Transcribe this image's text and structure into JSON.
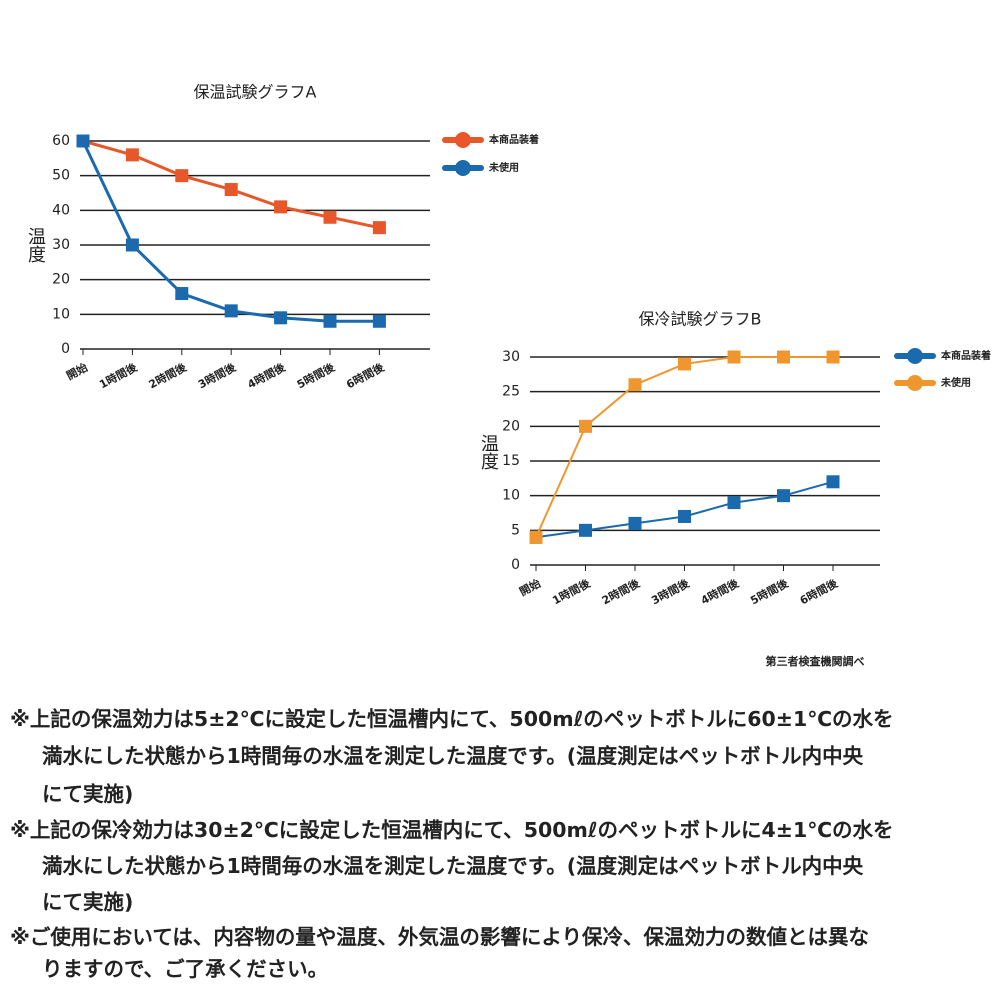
{
  "chart_data": [
    {
      "type": "line",
      "title": "保温試験グラフA",
      "y_label": "温度",
      "categories": [
        "開始",
        "1時間後",
        "2時間後",
        "3時間後",
        "4時間後",
        "5時間後",
        "6時間後"
      ],
      "series": [
        {
          "name": "本商品装着",
          "color": "#e8572a",
          "values": [
            60,
            56,
            50,
            46,
            41,
            38,
            35
          ]
        },
        {
          "name": "未使用",
          "color": "#1a6aad",
          "values": [
            60,
            30,
            16,
            11,
            9,
            8,
            8
          ]
        }
      ],
      "ylim": [
        0,
        60
      ],
      "yticks": [
        0,
        10,
        20,
        30,
        40,
        50,
        60
      ],
      "grid": true,
      "legend": "right"
    },
    {
      "type": "line",
      "title": "保冷試験グラフB",
      "y_label": "温度",
      "categories": [
        "開始",
        "1時間後",
        "2時間後",
        "3時間後",
        "4時間後",
        "5時間後",
        "6時間後"
      ],
      "series": [
        {
          "name": "本商品装着",
          "color": "#1a6aad",
          "values": [
            4,
            5,
            6,
            7,
            9,
            10,
            12
          ]
        },
        {
          "name": "未使用",
          "color": "#f0962e",
          "values": [
            4,
            20,
            26,
            29,
            30,
            30,
            30
          ]
        }
      ],
      "ylim": [
        0,
        30
      ],
      "yticks": [
        0,
        5,
        10,
        15,
        20,
        25,
        30
      ],
      "grid": true,
      "legend": "right"
    }
  ],
  "source": "第三者検査機関調べ",
  "notes": [
    [
      "※上記の保温効力は5±2℃に設定した恒温槽内にて、500mℓのペットボトルに60±1℃の水を",
      "満水にした状態から1時間毎の水温を測定した温度です。(温度測定はペットボトル内中央",
      "にて実施)"
    ],
    [
      "※上記の保冷効力は30±2℃に設定した恒温槽内にて、500mℓのペットボトルに4±1℃の水を",
      "満水にした状態から1時間毎の水温を測定した温度です。(温度測定はペットボトル内中央",
      "にて実施)"
    ],
    [
      "※ご使用においては、内容物の量や温度、外気温の影響により保冷、保温効力の数値とは異な",
      "りますので、ご了承ください。"
    ]
  ]
}
